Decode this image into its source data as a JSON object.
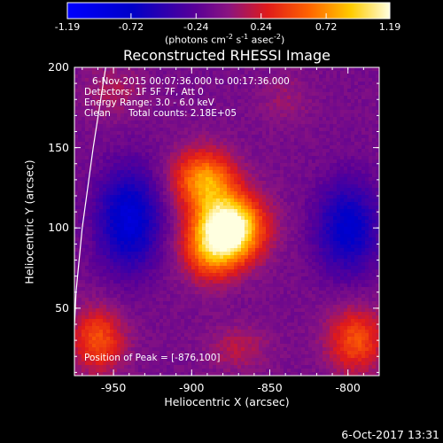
{
  "chart_data": {
    "type": "heatmap",
    "title": "Reconstructed RHESSI Image",
    "xlabel": "Heliocentric X (arcsec)",
    "ylabel": "Heliocentric Y (arcsec)",
    "xlim": [
      -975,
      -780
    ],
    "ylim": [
      8,
      200
    ],
    "x_ticks": [
      -950,
      -900,
      -850,
      -800
    ],
    "x_tick_labels": [
      "-950",
      "-900",
      "-850",
      "-800"
    ],
    "y_ticks": [
      50,
      100,
      150,
      200
    ],
    "y_tick_labels": [
      "50",
      "100",
      "150",
      "200"
    ],
    "colorbar": {
      "ticks": [
        -1.19,
        -0.72,
        -0.24,
        0.24,
        0.72,
        1.19
      ],
      "tick_labels": [
        "-1.19",
        "-0.72",
        "-0.24",
        "0.24",
        "0.72",
        "1.19"
      ],
      "unit_text": "(photons cm",
      "unit_exp1": "-2",
      "unit_mid": " s",
      "unit_exp2": "-1",
      "unit_end": " asec",
      "unit_exp3": "-2",
      "unit_close": ")"
    },
    "annotations": {
      "time": "6-Nov-2015 00:07:36.000 to 00:17:36.000",
      "detectors": "Detectors: 1F 5F 7F, Att 0",
      "energy": "Energy Range: 3.0 - 6.0 keV",
      "clean_label": "Clean",
      "total_counts": "Total counts: 2.18E+05",
      "peak": "Position of Peak = [-876,100]"
    },
    "peak": {
      "x": -876,
      "y": 100,
      "value": 1.19
    },
    "sources": [
      {
        "x": -876,
        "y": 100,
        "amplitude": 1.45,
        "sx": 15,
        "sy": 14
      },
      {
        "x": -892,
        "y": 130,
        "amplitude": 0.85,
        "sx": 14,
        "sy": 13
      },
      {
        "x": -888,
        "y": 84,
        "amplitude": 0.55,
        "sx": 13,
        "sy": 13
      },
      {
        "x": -940,
        "y": 105,
        "amplitude": -0.75,
        "sx": 14,
        "sy": 22
      },
      {
        "x": -800,
        "y": 100,
        "amplitude": -0.65,
        "sx": 14,
        "sy": 20
      },
      {
        "x": -960,
        "y": 30,
        "amplitude": 0.6,
        "sx": 12,
        "sy": 14
      },
      {
        "x": -795,
        "y": 30,
        "amplitude": 0.6,
        "sx": 13,
        "sy": 14
      },
      {
        "x": -950,
        "y": 185,
        "amplitude": 0.2,
        "sx": 14,
        "sy": 12
      },
      {
        "x": -870,
        "y": 25,
        "amplitude": 0.25,
        "sx": 14,
        "sy": 10
      },
      {
        "x": -840,
        "y": 180,
        "amplitude": 0.15,
        "sx": 12,
        "sy": 12
      }
    ],
    "limb_curve": [
      [
        -976.5,
        8
      ],
      [
        -974,
        60
      ],
      [
        -970,
        100
      ],
      [
        -963,
        150
      ],
      [
        -955,
        200
      ]
    ],
    "grid": false
  },
  "footer": {
    "date": "6-Oct-2017 13:31"
  }
}
